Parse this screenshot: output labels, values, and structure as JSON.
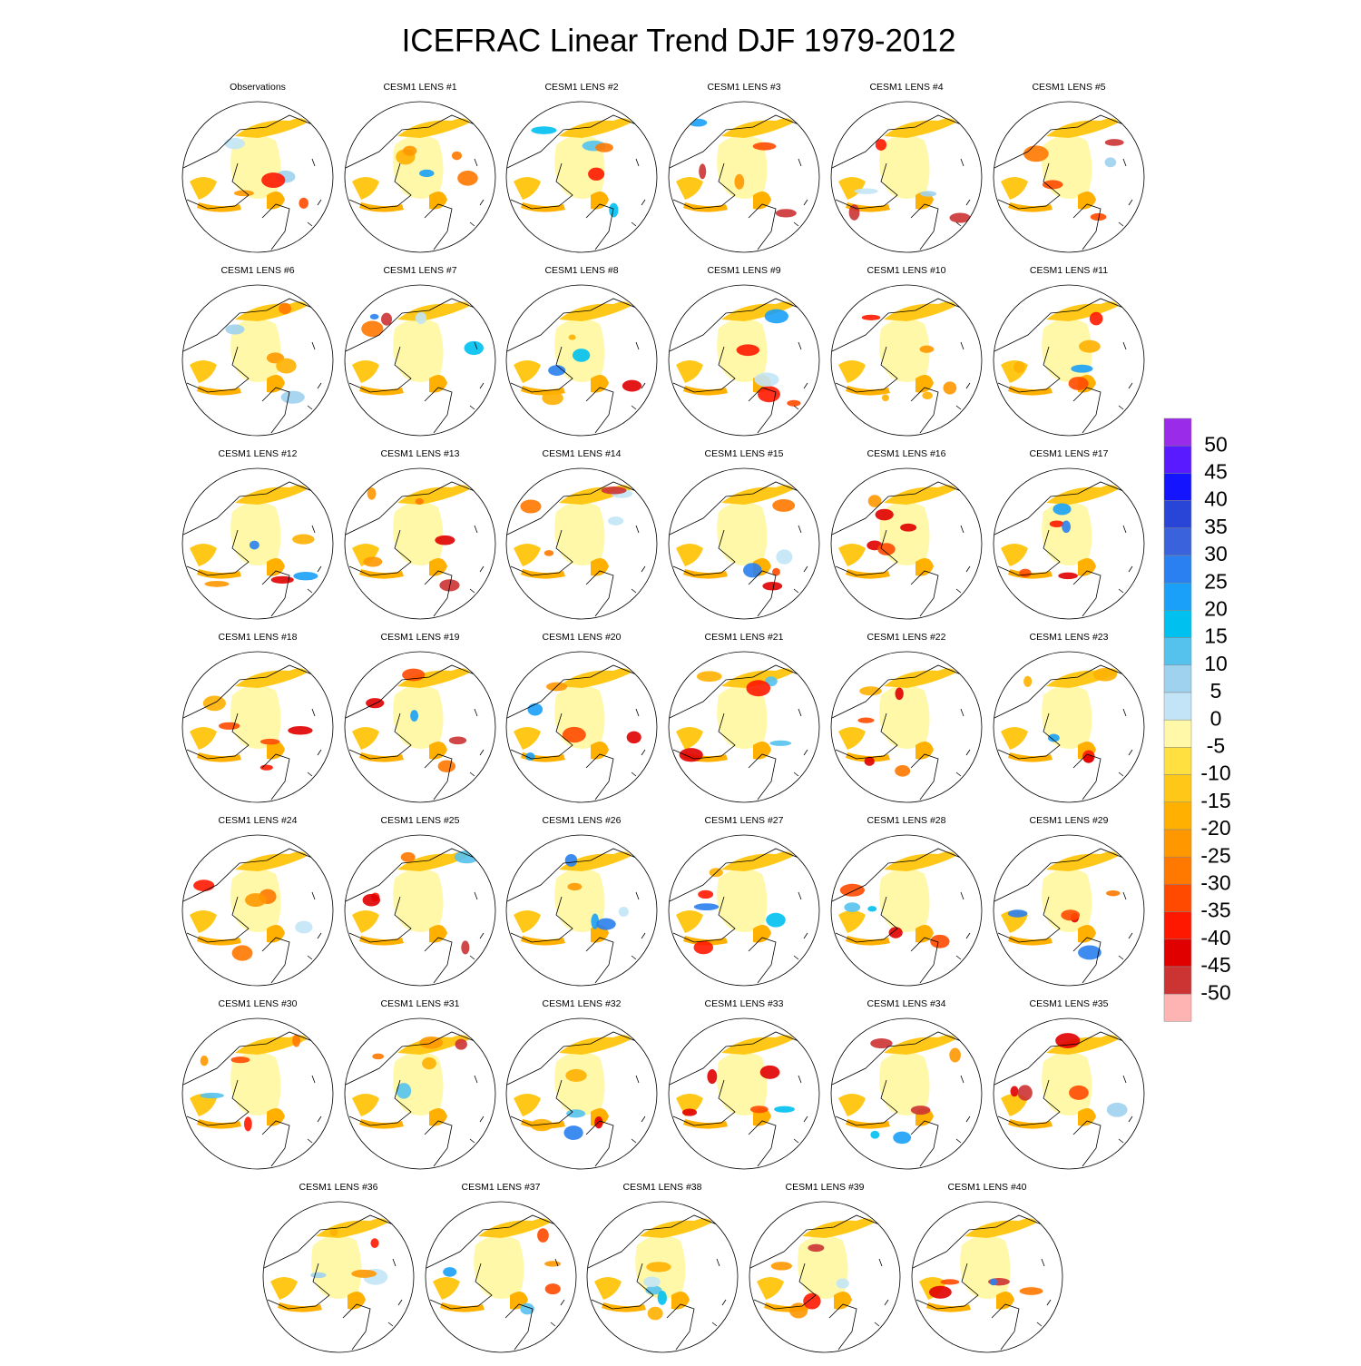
{
  "title": "ICEFRAC Linear Trend DJF 1979-2012",
  "panels": [
    "Observations",
    "CESM1 LENS #1",
    "CESM1 LENS #2",
    "CESM1 LENS #3",
    "CESM1 LENS #4",
    "CESM1 LENS #5",
    "CESM1 LENS #6",
    "CESM1 LENS #7",
    "CESM1 LENS #8",
    "CESM1 LENS #9",
    "CESM1 LENS #10",
    "CESM1 LENS #11",
    "CESM1 LENS #12",
    "CESM1 LENS #13",
    "CESM1 LENS #14",
    "CESM1 LENS #15",
    "CESM1 LENS #16",
    "CESM1 LENS #17",
    "CESM1 LENS #18",
    "CESM1 LENS #19",
    "CESM1 LENS #20",
    "CESM1 LENS #21",
    "CESM1 LENS #22",
    "CESM1 LENS #23",
    "CESM1 LENS #24",
    "CESM1 LENS #25",
    "CESM1 LENS #26",
    "CESM1 LENS #27",
    "CESM1 LENS #28",
    "CESM1 LENS #29",
    "CESM1 LENS #30",
    "CESM1 LENS #31",
    "CESM1 LENS #32",
    "CESM1 LENS #33",
    "CESM1 LENS #34",
    "CESM1 LENS #35",
    "CESM1 LENS #36",
    "CESM1 LENS #37",
    "CESM1 LENS #38",
    "CESM1 LENS #39",
    "CESM1 LENS #40"
  ],
  "colorbar": {
    "levels": [
      50,
      45,
      40,
      35,
      30,
      25,
      20,
      15,
      10,
      5,
      0,
      -5,
      -10,
      -15,
      -20,
      -25,
      -30,
      -35,
      -40,
      -45,
      -50
    ],
    "colors": [
      "#9a2be8",
      "#5a1aff",
      "#1414ff",
      "#2845d8",
      "#3a62dc",
      "#2a80f0",
      "#1aa0f8",
      "#00c0f0",
      "#55c2ee",
      "#9fd2ee",
      "#c2e4f6",
      "#fff8a8",
      "#ffe040",
      "#ffc818",
      "#ffb000",
      "#ff9800",
      "#ff7800",
      "#ff4a00",
      "#ff1800",
      "#e00000",
      "#cc3333",
      "#ffb4b4"
    ]
  }
}
